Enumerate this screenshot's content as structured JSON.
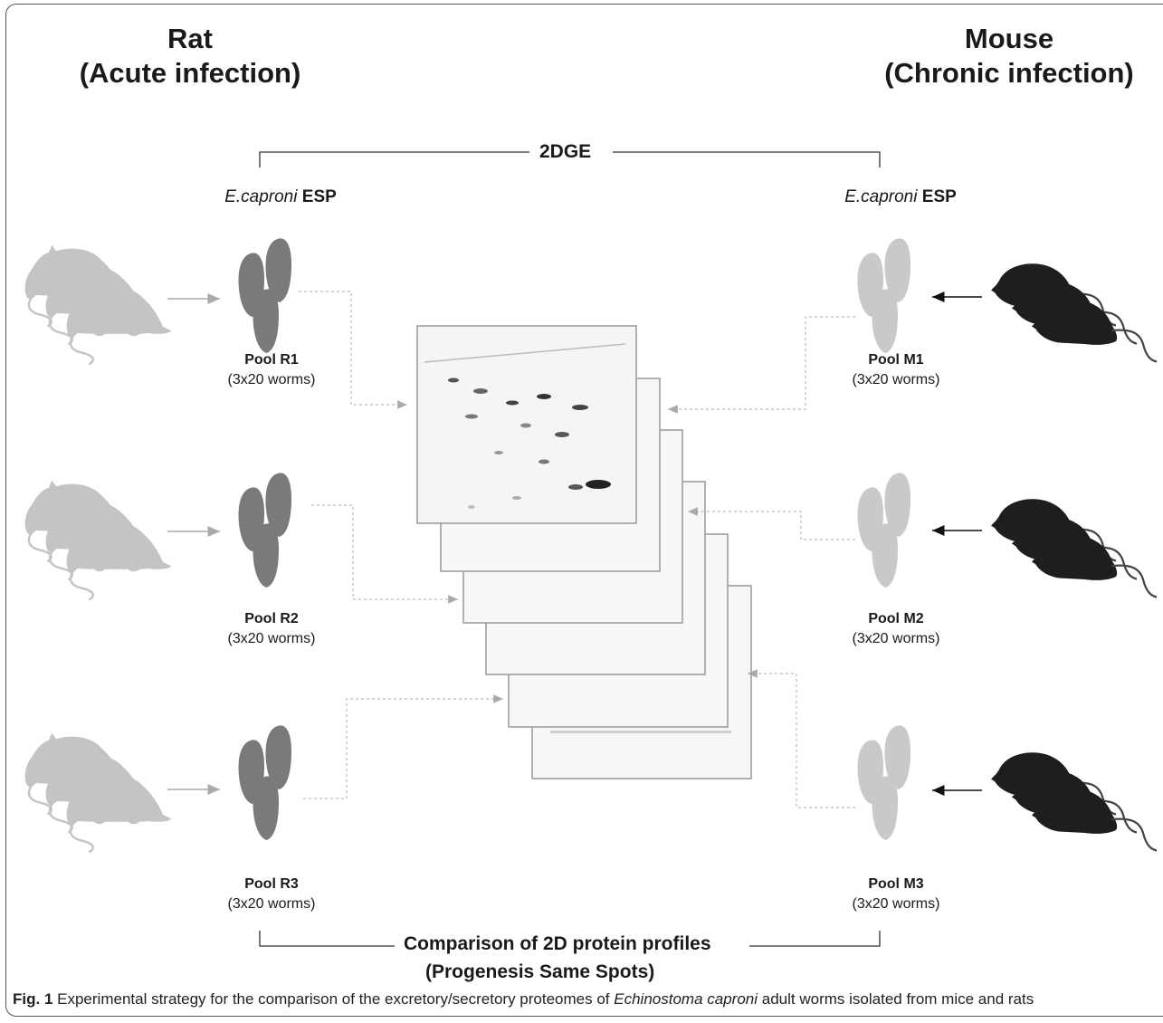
{
  "left_host": {
    "name": "Rat",
    "condition": "(Acute infection)"
  },
  "right_host": {
    "name": "Mouse",
    "condition": "(Chronic infection)"
  },
  "top_bracket": "2DGE",
  "esp_label": {
    "species": "E.caproni",
    "product": "ESP"
  },
  "left_pools": [
    {
      "name": "Pool R1",
      "count": "(3x20 worms)"
    },
    {
      "name": "Pool R2",
      "count": "(3x20 worms)"
    },
    {
      "name": "Pool R3",
      "count": "(3x20 worms)"
    }
  ],
  "right_pools": [
    {
      "name": "Pool M1",
      "count": "(3x20 worms)"
    },
    {
      "name": "Pool M2",
      "count": "(3x20 worms)"
    },
    {
      "name": "Pool M3",
      "count": "(3x20 worms)"
    }
  ],
  "bottom_bracket": {
    "label": "Comparison of 2D protein profiles",
    "sub": "(Progenesis Same Spots)"
  },
  "caption": {
    "fig": "Fig. 1",
    "text_before": "Experimental strategy for the comparison of the excretory/secretory proteomes of",
    "species": "Echinostoma caproni",
    "text_after": "adult worms isolated from mice and rats"
  },
  "icons": [
    "rat-icon",
    "mouse-icon",
    "worm-icon",
    "gel-image-icon"
  ],
  "colors": {
    "rat": "#c4c4c4",
    "mouse": "#1e1e1e",
    "worm_rat": "#7a7a7a",
    "worm_mouse": "#c9c9c9"
  }
}
